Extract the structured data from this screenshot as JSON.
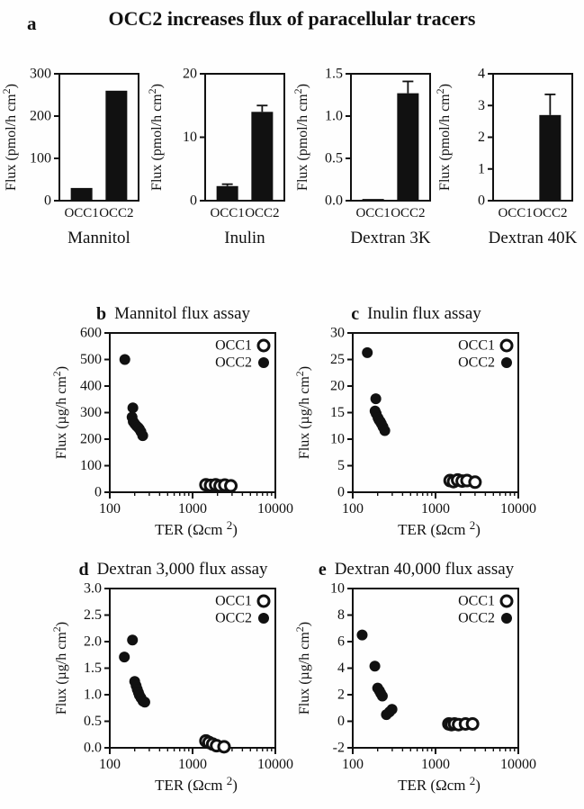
{
  "figure": {
    "panel_a_label": "a",
    "title": "OCC2 increases flux of paracellular tracers",
    "ink_color": "#111111",
    "background": "#ffffff"
  },
  "chart_data": [
    {
      "type": "bar",
      "panel": "a",
      "title": "Mannitol",
      "categories": [
        "OCC1",
        "OCC2"
      ],
      "values": [
        30,
        260
      ],
      "errors": [
        0,
        0
      ],
      "ylabel": "Flux (pmol/h cm²)",
      "ylim": [
        0,
        300
      ],
      "yticks": [
        "0",
        "100",
        "200",
        "300"
      ]
    },
    {
      "type": "bar",
      "panel": "a",
      "title": "Inulin",
      "categories": [
        "OCC1",
        "OCC2"
      ],
      "values": [
        2.3,
        14
      ],
      "errors": [
        0.3,
        1.0
      ],
      "ylabel": "Flux (pmol/h cm²)",
      "ylim": [
        0,
        20
      ],
      "yticks": [
        "0",
        "10",
        "20"
      ]
    },
    {
      "type": "bar",
      "panel": "a",
      "title": "Dextran 3K",
      "categories": [
        "OCC1",
        "OCC2"
      ],
      "values": [
        0.02,
        1.27
      ],
      "errors": [
        0,
        0.14
      ],
      "ylabel": "Flux (pmol/h cm²)",
      "ylim": [
        0,
        1.5
      ],
      "yticks": [
        "0.0",
        "0.5",
        "1.0",
        "1.5"
      ]
    },
    {
      "type": "bar",
      "panel": "a",
      "title": "Dextran 40K",
      "categories": [
        "OCC1",
        "OCC2"
      ],
      "values": [
        0,
        2.7
      ],
      "errors": [
        0,
        0.65
      ],
      "ylabel": "Flux (pmol/h cm²)",
      "ylim": [
        0,
        4
      ],
      "yticks": [
        "0",
        "1",
        "2",
        "3",
        "4"
      ]
    },
    {
      "type": "scatter",
      "panel": "b",
      "title": "Mannitol flux assay",
      "xlabel": "TER (Ωcm ²)",
      "ylabel": "Flux (µg/h cm²)",
      "xscale": "log",
      "xlim": [
        100,
        10000
      ],
      "ylim": [
        0,
        600
      ],
      "xticks": [
        "100",
        "1000",
        "10000"
      ],
      "yticks": [
        "0",
        "100",
        "200",
        "300",
        "400",
        "500",
        "600"
      ],
      "legend_position": "top-right",
      "legend": [
        {
          "label": "OCC1",
          "marker": "open"
        },
        {
          "label": "OCC2",
          "marker": "filled"
        }
      ],
      "series": [
        {
          "name": "OCC1",
          "marker": "open",
          "points": [
            [
              1450,
              28
            ],
            [
              1650,
              26
            ],
            [
              1900,
              28
            ],
            [
              2150,
              24
            ],
            [
              2450,
              27
            ],
            [
              2900,
              24
            ]
          ]
        },
        {
          "name": "OCC2",
          "marker": "filled",
          "points": [
            [
              152,
              500
            ],
            [
              190,
              318
            ],
            [
              186,
              283
            ],
            [
              192,
              266
            ],
            [
              200,
              258
            ],
            [
              210,
              250
            ],
            [
              220,
              244
            ],
            [
              228,
              238
            ],
            [
              238,
              228
            ],
            [
              250,
              213
            ]
          ]
        }
      ]
    },
    {
      "type": "scatter",
      "panel": "c",
      "title": "Inulin flux assay",
      "xlabel": "TER (Ωcm ²)",
      "ylabel": "Flux (µg/h cm²)",
      "xscale": "log",
      "xlim": [
        100,
        10000
      ],
      "ylim": [
        0,
        30
      ],
      "xticks": [
        "100",
        "1000",
        "10000"
      ],
      "yticks": [
        "0",
        "5",
        "10",
        "15",
        "20",
        "25",
        "30"
      ],
      "legend_position": "top-right",
      "legend": [
        {
          "label": "OCC1",
          "marker": "open"
        },
        {
          "label": "OCC2",
          "marker": "filled"
        }
      ],
      "series": [
        {
          "name": "OCC1",
          "marker": "open",
          "points": [
            [
              1500,
              2.2
            ],
            [
              1650,
              2.0
            ],
            [
              1850,
              2.3
            ],
            [
              2100,
              2.1
            ],
            [
              2400,
              2.2
            ],
            [
              3000,
              1.9
            ]
          ]
        },
        {
          "name": "OCC2",
          "marker": "filled",
          "points": [
            [
              150,
              26.3
            ],
            [
              190,
              17.6
            ],
            [
              186,
              15.3
            ],
            [
              192,
              14.8
            ],
            [
              202,
              14.0
            ],
            [
              208,
              13.6
            ],
            [
              215,
              13.3
            ],
            [
              222,
              12.9
            ],
            [
              232,
              12.3
            ],
            [
              244,
              11.6
            ]
          ]
        }
      ]
    },
    {
      "type": "scatter",
      "panel": "d",
      "title": "Dextran 3,000 flux assay",
      "xlabel": "TER (Ωcm ²)",
      "ylabel": "Flux (µg/h cm²)",
      "xscale": "log",
      "xlim": [
        100,
        10000
      ],
      "ylim": [
        0,
        3
      ],
      "xticks": [
        "100",
        "1000",
        "10000"
      ],
      "yticks": [
        "0.0",
        "0.5",
        "1.0",
        "1.5",
        "2.0",
        "2.5",
        "3.0"
      ],
      "legend_position": "top-right",
      "legend": [
        {
          "label": "OCC1",
          "marker": "open"
        },
        {
          "label": "OCC2",
          "marker": "filled"
        }
      ],
      "series": [
        {
          "name": "OCC1",
          "marker": "open",
          "points": [
            [
              1450,
              0.13
            ],
            [
              1580,
              0.1
            ],
            [
              1750,
              0.07
            ],
            [
              1950,
              0.04
            ],
            [
              2400,
              0.02
            ]
          ]
        },
        {
          "name": "OCC2",
          "marker": "filled",
          "points": [
            [
              188,
              2.03
            ],
            [
              150,
              1.71
            ],
            [
              200,
              1.25
            ],
            [
              208,
              1.17
            ],
            [
              215,
              1.1
            ],
            [
              222,
              1.04
            ],
            [
              228,
              0.99
            ],
            [
              238,
              0.94
            ],
            [
              252,
              0.88
            ],
            [
              265,
              0.86
            ]
          ]
        }
      ]
    },
    {
      "type": "scatter",
      "panel": "e",
      "title": "Dextran 40,000 flux assay",
      "xlabel": "TER (Ωcm ²)",
      "ylabel": "Flux (µg/h cm²)",
      "xscale": "log",
      "xlim": [
        100,
        10000
      ],
      "ylim": [
        -2,
        10
      ],
      "xticks": [
        "100",
        "1000",
        "10000"
      ],
      "yticks": [
        "-2",
        "0",
        "2",
        "4",
        "6",
        "8",
        "10"
      ],
      "legend_position": "top-right",
      "legend": [
        {
          "label": "OCC1",
          "marker": "open"
        },
        {
          "label": "OCC2",
          "marker": "filled"
        }
      ],
      "series": [
        {
          "name": "OCC1",
          "marker": "open",
          "points": [
            [
              1450,
              -0.2
            ],
            [
              1560,
              -0.25
            ],
            [
              1700,
              -0.2
            ],
            [
              1900,
              -0.25
            ],
            [
              2300,
              -0.2
            ],
            [
              2800,
              -0.2
            ]
          ]
        },
        {
          "name": "OCC2",
          "marker": "filled",
          "points": [
            [
              130,
              6.5
            ],
            [
              185,
              4.15
            ],
            [
              200,
              2.5
            ],
            [
              210,
              2.3
            ],
            [
              218,
              2.1
            ],
            [
              228,
              1.9
            ],
            [
              255,
              0.5
            ],
            [
              278,
              0.7
            ],
            [
              298,
              0.9
            ]
          ]
        }
      ]
    }
  ]
}
